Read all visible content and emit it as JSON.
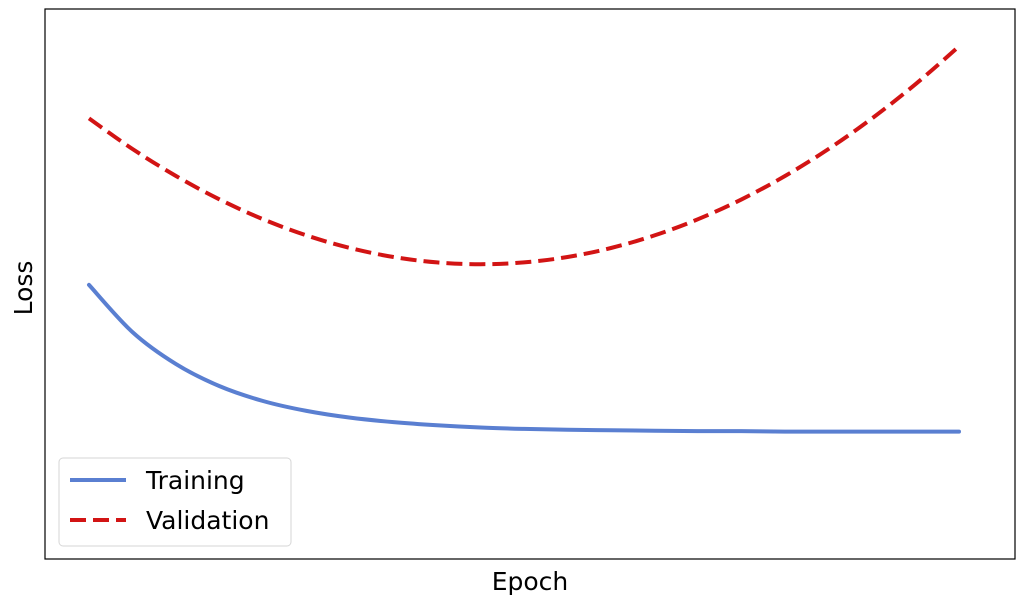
{
  "chart_data": {
    "type": "line",
    "title": "",
    "xlabel": "Epoch",
    "ylabel": "Loss",
    "xlim": [
      0,
      20
    ],
    "ylim": [
      0,
      1
    ],
    "x_ticks_shown": false,
    "y_ticks_shown": false,
    "grid": false,
    "legend_position": "lower-left",
    "x": [
      0,
      1,
      2,
      3,
      4,
      5,
      6,
      7,
      8,
      9,
      10,
      11,
      12,
      13,
      14,
      15,
      16,
      17,
      18,
      19,
      20
    ],
    "series": [
      {
        "name": "Training",
        "color": "#5a7fd1",
        "line_style": "solid",
        "values": [
          0.498,
          0.393,
          0.322,
          0.273,
          0.24,
          0.218,
          0.203,
          0.193,
          0.186,
          0.181,
          0.178,
          0.176,
          0.175,
          0.174,
          0.173,
          0.173,
          0.172,
          0.172,
          0.172,
          0.172,
          0.172
        ]
      },
      {
        "name": "Validation",
        "color": "#d21414",
        "line_style": "dashed",
        "values": [
          0.868,
          0.8,
          0.74,
          0.688,
          0.644,
          0.608,
          0.58,
          0.56,
          0.548,
          0.544,
          0.548,
          0.56,
          0.58,
          0.608,
          0.644,
          0.688,
          0.74,
          0.8,
          0.868,
          0.944,
          1.028
        ]
      }
    ]
  }
}
